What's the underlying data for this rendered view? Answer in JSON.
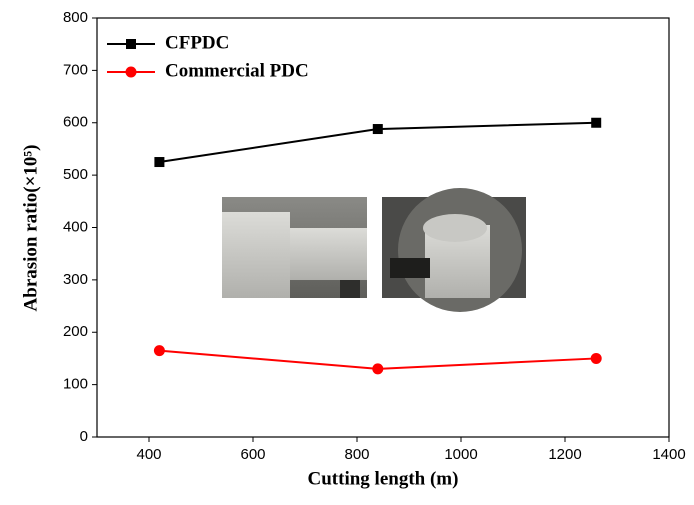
{
  "chart_data": {
    "type": "line",
    "x_label": "Cutting length (m)",
    "y_label": "Abrasion ratio(×10⁵)",
    "xlim": [
      300,
      1400
    ],
    "xticks": [
      400,
      600,
      800,
      1000,
      1200,
      1400
    ],
    "ylim": [
      0,
      800
    ],
    "yticks": [
      0,
      100,
      200,
      300,
      400,
      500,
      600,
      700,
      800
    ],
    "legend": "top-left",
    "series": [
      {
        "name": "CFPDC",
        "color": "#000000",
        "marker": "square",
        "x": [
          420,
          840,
          1260
        ],
        "values": [
          525,
          588,
          600
        ]
      },
      {
        "name": "Commercial PDC",
        "color": "#ff0000",
        "marker": "circle",
        "x": [
          420,
          840,
          1260
        ],
        "values": [
          165,
          130,
          150
        ]
      }
    ]
  }
}
